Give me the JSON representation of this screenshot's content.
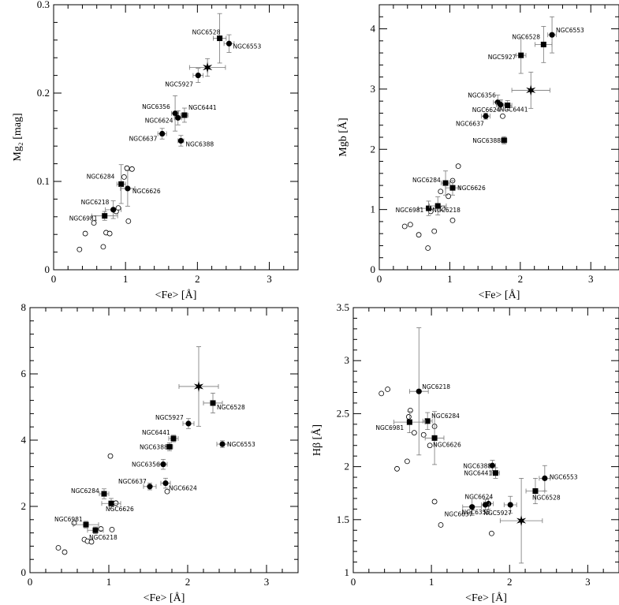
{
  "chart_data": [
    {
      "type": "scatter",
      "xlabel": "<Fe> [Å]",
      "ylabel": "Mg₂ [mag]",
      "xlim": [
        0,
        3.4
      ],
      "ylim": [
        0,
        0.3
      ],
      "xticks": [
        0,
        1,
        2,
        3
      ],
      "yticks": [
        0,
        0.1,
        0.2,
        0.3
      ],
      "yticklabels": [
        "0",
        "0.1",
        "0.2",
        "0.3"
      ],
      "labeled_points": [
        {
          "name": "NGC6528",
          "x": 2.31,
          "y": 0.262,
          "xerr": 0.09,
          "yerr": 0.028,
          "marker": "filled-square"
        },
        {
          "name": "NGC6553",
          "x": 2.44,
          "y": 0.256,
          "xerr": 0.07,
          "yerr": 0.01,
          "marker": "filled-circle"
        },
        {
          "name": "",
          "x": 2.14,
          "y": 0.229,
          "xerr": 0.25,
          "yerr": 0.01,
          "marker": "star"
        },
        {
          "name": "NGC5927",
          "x": 2.01,
          "y": 0.22,
          "xerr": 0.07,
          "yerr": 0.008,
          "marker": "filled-circle"
        },
        {
          "name": "NGC6356",
          "x": 1.69,
          "y": 0.177,
          "xerr": 0.05,
          "yerr": 0.02,
          "marker": "filled-circle"
        },
        {
          "name": "NGC6441",
          "x": 1.82,
          "y": 0.175,
          "xerr": 0.05,
          "yerr": 0.008,
          "marker": "filled-square"
        },
        {
          "name": "NGC6624",
          "x": 1.73,
          "y": 0.172,
          "xerr": 0.05,
          "yerr": 0.008,
          "marker": "filled-circle"
        },
        {
          "name": "NGC6637",
          "x": 1.51,
          "y": 0.154,
          "xerr": 0.06,
          "yerr": 0.006,
          "marker": "filled-circle"
        },
        {
          "name": "NGC6388",
          "x": 1.77,
          "y": 0.146,
          "xerr": 0.04,
          "yerr": 0.006,
          "marker": "filled-circle"
        },
        {
          "name": "NGC6284",
          "x": 0.94,
          "y": 0.097,
          "xerr": 0.06,
          "yerr": 0.022,
          "marker": "filled-square"
        },
        {
          "name": "NGC6626",
          "x": 1.03,
          "y": 0.092,
          "xerr": 0.1,
          "yerr": 0.02,
          "marker": "filled-circle"
        },
        {
          "name": "NGC6218",
          "x": 0.83,
          "y": 0.068,
          "xerr": 0.11,
          "yerr": 0.01,
          "marker": "filled-circle"
        },
        {
          "name": "NGC6981",
          "x": 0.71,
          "y": 0.061,
          "xerr": 0.18,
          "yerr": 0.005,
          "marker": "filled-square"
        }
      ],
      "open_points": [
        [
          0.36,
          0.023
        ],
        [
          0.44,
          0.041
        ],
        [
          0.56,
          0.053
        ],
        [
          0.69,
          0.026
        ],
        [
          0.73,
          0.042
        ],
        [
          0.78,
          0.041
        ],
        [
          0.87,
          0.066
        ],
        [
          0.9,
          0.07
        ],
        [
          0.98,
          0.105
        ],
        [
          1.02,
          0.115
        ],
        [
          1.04,
          0.055
        ],
        [
          1.09,
          0.114
        ]
      ]
    },
    {
      "type": "scatter",
      "xlabel": "<Fe> [Å]",
      "ylabel": "Mgb [Å]",
      "xlim": [
        0,
        3.4
      ],
      "ylim": [
        0,
        4.4
      ],
      "xticks": [
        0,
        1,
        2,
        3
      ],
      "yticks": [
        0,
        1,
        2,
        3,
        4
      ],
      "yticklabels": [
        "0",
        "1",
        "2",
        "3",
        "4"
      ],
      "labeled_points": [
        {
          "name": "NGC6553",
          "x": 2.45,
          "y": 3.9,
          "xerr": 0.06,
          "yerr": 0.3,
          "marker": "filled-circle"
        },
        {
          "name": "NGC6528",
          "x": 2.33,
          "y": 3.74,
          "xerr": 0.12,
          "yerr": 0.3,
          "marker": "filled-square"
        },
        {
          "name": "NGC5927",
          "x": 2.01,
          "y": 3.56,
          "xerr": 0.07,
          "yerr": 0.3,
          "marker": "filled-square"
        },
        {
          "name": "",
          "x": 2.15,
          "y": 2.98,
          "xerr": 0.27,
          "yerr": 0.3,
          "marker": "star"
        },
        {
          "name": "NGC6356",
          "x": 1.68,
          "y": 2.78,
          "xerr": 0.06,
          "yerr": 0.12,
          "marker": "filled-circle"
        },
        {
          "name": "NGC6624",
          "x": 1.72,
          "y": 2.74,
          "xerr": 0.06,
          "yerr": 0.08,
          "marker": "filled-circle"
        },
        {
          "name": "NGC6441",
          "x": 1.82,
          "y": 2.73,
          "xerr": 0.06,
          "yerr": 0.08,
          "marker": "filled-square"
        },
        {
          "name": "NGC6637",
          "x": 1.51,
          "y": 2.55,
          "xerr": 0.06,
          "yerr": 0.05,
          "marker": "filled-circle"
        },
        {
          "name": "NGC6388",
          "x": 1.77,
          "y": 2.15,
          "xerr": 0.04,
          "yerr": 0.06,
          "marker": "filled-square"
        },
        {
          "name": "NGC6284",
          "x": 0.94,
          "y": 1.44,
          "xerr": 0.06,
          "yerr": 0.2,
          "marker": "filled-square"
        },
        {
          "name": "NGC6626",
          "x": 1.04,
          "y": 1.36,
          "xerr": 0.1,
          "yerr": 0.12,
          "marker": "filled-square"
        },
        {
          "name": "NGC6981",
          "x": 0.7,
          "y": 1.02,
          "xerr": 0.15,
          "yerr": 0.12,
          "marker": "filled-square"
        },
        {
          "name": "NGC6218",
          "x": 0.83,
          "y": 1.06,
          "xerr": 0.12,
          "yerr": 0.15,
          "marker": "filled-square"
        }
      ],
      "open_points": [
        [
          0.36,
          0.72
        ],
        [
          0.44,
          0.75
        ],
        [
          0.56,
          0.58
        ],
        [
          0.69,
          0.36
        ],
        [
          0.73,
          0.97
        ],
        [
          0.78,
          0.64
        ],
        [
          0.87,
          1.3
        ],
        [
          0.9,
          1.02
        ],
        [
          0.98,
          1.22
        ],
        [
          1.04,
          1.48
        ],
        [
          1.04,
          0.82
        ],
        [
          1.12,
          1.72
        ],
        [
          1.75,
          2.55
        ]
      ]
    },
    {
      "type": "scatter",
      "xlabel": "<Fe> [Å]",
      "ylabel": "NaD [Å]",
      "xlim": [
        0,
        3.4
      ],
      "ylim": [
        0,
        8
      ],
      "xticks": [
        0,
        1,
        2,
        3
      ],
      "yticks": [
        0,
        2,
        4,
        6,
        8
      ],
      "yticklabels": [
        "0",
        "2",
        "4",
        "6",
        "8"
      ],
      "labeled_points": [
        {
          "name": "",
          "x": 2.14,
          "y": 5.62,
          "xerr": 0.25,
          "yerr": 1.2,
          "marker": "star"
        },
        {
          "name": "NGC6528",
          "x": 2.32,
          "y": 5.12,
          "xerr": 0.12,
          "yerr": 0.3,
          "marker": "filled-square"
        },
        {
          "name": "NGC5927",
          "x": 2.01,
          "y": 4.5,
          "xerr": 0.07,
          "yerr": 0.15,
          "marker": "filled-circle"
        },
        {
          "name": "NGC6441",
          "x": 1.82,
          "y": 4.05,
          "xerr": 0.06,
          "yerr": 0.1,
          "marker": "filled-square"
        },
        {
          "name": "NGC6553",
          "x": 2.44,
          "y": 3.88,
          "xerr": 0.07,
          "yerr": 0.1,
          "marker": "filled-circle"
        },
        {
          "name": "NGC6388",
          "x": 1.77,
          "y": 3.8,
          "xerr": 0.04,
          "yerr": 0.12,
          "marker": "filled-square"
        },
        {
          "name": "NGC6356",
          "x": 1.69,
          "y": 3.27,
          "xerr": 0.05,
          "yerr": 0.15,
          "marker": "filled-circle"
        },
        {
          "name": "NGC6637",
          "x": 1.52,
          "y": 2.6,
          "xerr": 0.08,
          "yerr": 0.1,
          "marker": "filled-circle"
        },
        {
          "name": "NGC6624",
          "x": 1.72,
          "y": 2.7,
          "xerr": 0.06,
          "yerr": 0.15,
          "marker": "filled-circle"
        },
        {
          "name": "NGC6284",
          "x": 0.94,
          "y": 2.38,
          "xerr": 0.06,
          "yerr": 0.15,
          "marker": "filled-square"
        },
        {
          "name": "NGC6626",
          "x": 1.03,
          "y": 2.09,
          "xerr": 0.12,
          "yerr": 0.15,
          "marker": "filled-square"
        },
        {
          "name": "NGC6981",
          "x": 0.71,
          "y": 1.45,
          "xerr": 0.16,
          "yerr": 0.1,
          "marker": "filled-square"
        },
        {
          "name": "NGC6218",
          "x": 0.83,
          "y": 1.28,
          "xerr": 0.1,
          "yerr": 0.1,
          "marker": "filled-square"
        }
      ],
      "open_points": [
        [
          0.36,
          0.75
        ],
        [
          0.44,
          0.62
        ],
        [
          0.56,
          1.5
        ],
        [
          0.69,
          1.0
        ],
        [
          0.73,
          0.95
        ],
        [
          0.78,
          0.93
        ],
        [
          0.9,
          1.32
        ],
        [
          1.02,
          3.52
        ],
        [
          1.04,
          1.3
        ],
        [
          1.09,
          2.1
        ],
        [
          1.74,
          2.45
        ]
      ]
    },
    {
      "type": "scatter",
      "xlabel": "<Fe> [Å]",
      "ylabel": "Hβ [Å]",
      "xlim": [
        0,
        3.4
      ],
      "ylim": [
        1,
        3.5
      ],
      "xticks": [
        0,
        1,
        2,
        3
      ],
      "yticks": [
        1,
        1.5,
        2,
        2.5,
        3,
        3.5
      ],
      "yticklabels": [
        "1",
        "1.5",
        "2",
        "2.5",
        "3",
        "3.5"
      ],
      "labeled_points": [
        {
          "name": "NGC6218",
          "x": 0.84,
          "y": 2.71,
          "xerr": 0.12,
          "yerr": 0.6,
          "marker": "filled-circle"
        },
        {
          "name": "NGC6284",
          "x": 0.95,
          "y": 2.43,
          "xerr": 0.06,
          "yerr": 0.08,
          "marker": "filled-square"
        },
        {
          "name": "NGC6981",
          "x": 0.72,
          "y": 2.42,
          "xerr": 0.2,
          "yerr": 0.1,
          "marker": "filled-square"
        },
        {
          "name": "NGC6626",
          "x": 1.04,
          "y": 2.27,
          "xerr": 0.12,
          "yerr": 0.25,
          "marker": "filled-square"
        },
        {
          "name": "NGC6388",
          "x": 1.78,
          "y": 2.01,
          "xerr": 0.04,
          "yerr": 0.05,
          "marker": "filled-circle"
        },
        {
          "name": "NGC6441",
          "x": 1.82,
          "y": 1.94,
          "xerr": 0.05,
          "yerr": 0.05,
          "marker": "filled-square"
        },
        {
          "name": "NGC6553",
          "x": 2.45,
          "y": 1.89,
          "xerr": 0.07,
          "yerr": 0.12,
          "marker": "filled-circle"
        },
        {
          "name": "NGC6528",
          "x": 2.33,
          "y": 1.77,
          "xerr": 0.12,
          "yerr": 0.12,
          "marker": "filled-square"
        },
        {
          "name": "NGC6624",
          "x": 1.73,
          "y": 1.65,
          "xerr": 0.06,
          "yerr": 0.05,
          "marker": "filled-circle"
        },
        {
          "name": "NGC6637",
          "x": 1.52,
          "y": 1.62,
          "xerr": 0.12,
          "yerr": 0.08,
          "marker": "filled-circle"
        },
        {
          "name": "NGC6356",
          "x": 1.69,
          "y": 1.64,
          "xerr": 0.05,
          "yerr": 0.05,
          "marker": "filled-circle"
        },
        {
          "name": "NGC5927",
          "x": 2.01,
          "y": 1.64,
          "xerr": 0.08,
          "yerr": 0.08,
          "marker": "filled-circle"
        },
        {
          "name": "",
          "x": 2.15,
          "y": 1.49,
          "xerr": 0.27,
          "yerr": 0.4,
          "marker": "star"
        }
      ],
      "open_points": [
        [
          0.36,
          2.69
        ],
        [
          0.44,
          2.73
        ],
        [
          0.56,
          1.98
        ],
        [
          0.69,
          2.05
        ],
        [
          0.71,
          2.47
        ],
        [
          0.73,
          2.53
        ],
        [
          0.78,
          2.32
        ],
        [
          0.9,
          2.3
        ],
        [
          0.98,
          2.2
        ],
        [
          1.04,
          1.67
        ],
        [
          1.04,
          2.38
        ],
        [
          1.12,
          1.45
        ],
        [
          1.77,
          1.37
        ]
      ]
    }
  ]
}
